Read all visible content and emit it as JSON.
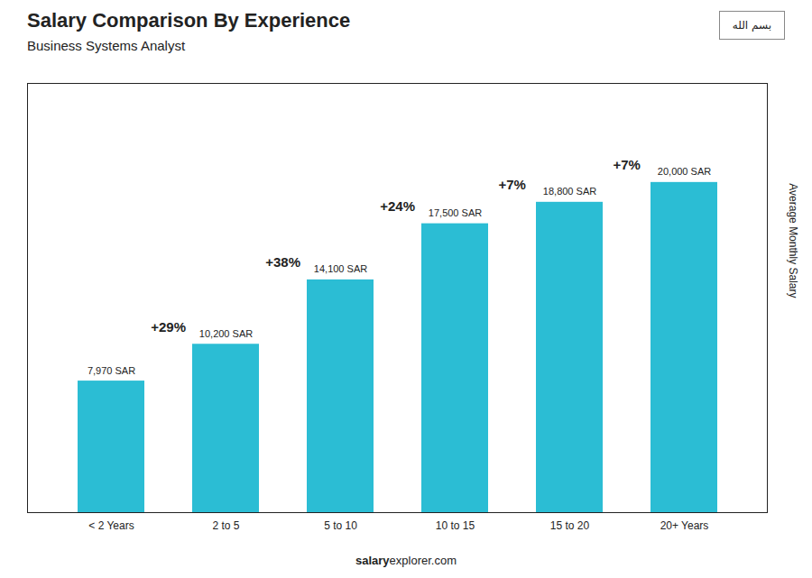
{
  "chart_data": {
    "type": "bar",
    "title": "Salary Comparison By Experience",
    "subtitle": "Business Systems Analyst",
    "categories": [
      "< 2 Years",
      "2 to 5",
      "5 to 10",
      "10 to 15",
      "15 to 20",
      "20+ Years"
    ],
    "values": [
      7970,
      10200,
      14100,
      17500,
      18800,
      20000
    ],
    "value_labels": [
      "7,970 SAR",
      "10,200 SAR",
      "14,100 SAR",
      "17,500 SAR",
      "18,800 SAR",
      "20,000 SAR"
    ],
    "data_labels": true,
    "color": "#2bbdd4",
    "ylabel": "Average Monthly Salary",
    "ylim": [
      0,
      26000
    ],
    "yticks": [],
    "tick_labels": "x",
    "grid": false,
    "annotations": [
      "+29%",
      "+38%",
      "+24%",
      "+7%",
      "+7%"
    ],
    "caption": [
      "salary",
      "explorer.com"
    ],
    "badge": "بسم الله"
  }
}
